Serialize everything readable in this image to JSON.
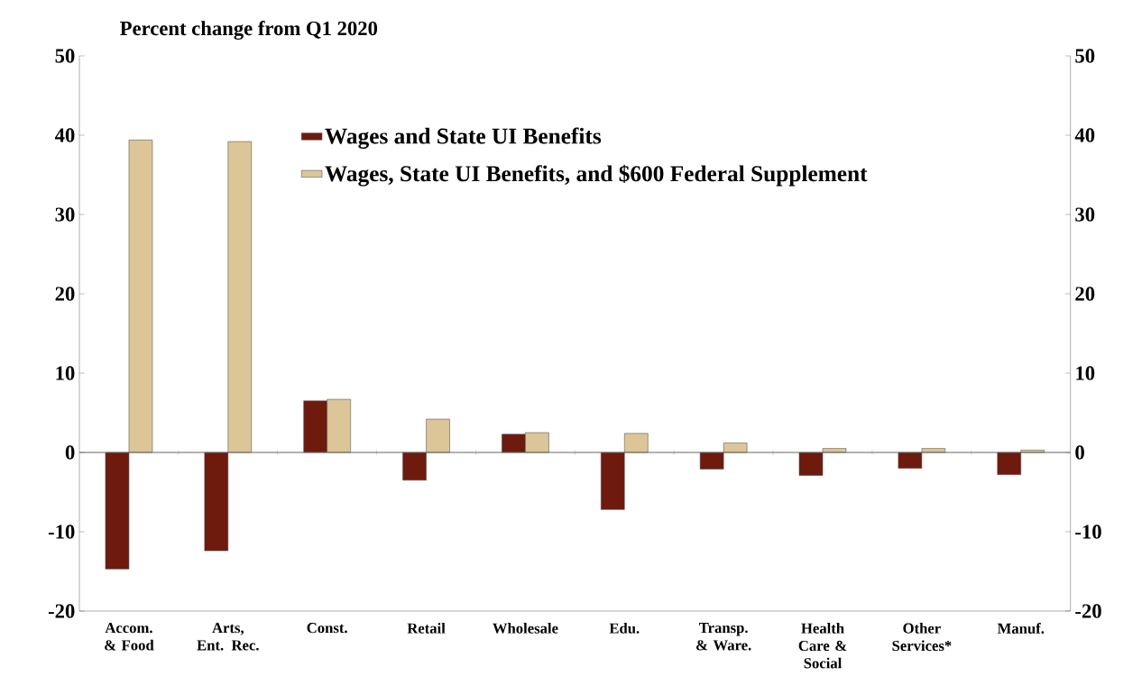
{
  "chart_data": {
    "type": "bar",
    "title": "Percent change from Q1 2020",
    "categories": [
      "Accom. & Food",
      "Arts, Ent. Rec.",
      "Const.",
      "Retail",
      "Wholesale",
      "Edu.",
      "Transp. & Ware.",
      "Health Care & Social",
      "Other Services*",
      "Manuf."
    ],
    "series": [
      {
        "name": "Wages and State UI Benefits",
        "color": "#6e1a0c",
        "values": [
          -14.7,
          -12.4,
          6.5,
          -3.5,
          2.3,
          -7.2,
          -2.1,
          -2.9,
          -2.0,
          -2.8
        ]
      },
      {
        "name": "Wages, State UI Benefits, and $600 Federal Supplement",
        "color": "#dcc597",
        "values": [
          39.4,
          39.2,
          6.7,
          4.2,
          2.5,
          2.4,
          1.2,
          0.5,
          0.5,
          0.3
        ]
      }
    ],
    "ylim": [
      -20,
      50
    ],
    "yticks": [
      -20,
      -10,
      0,
      10,
      20,
      30,
      40,
      50
    ],
    "y2lim": [
      -20,
      50
    ],
    "y2ticks": [
      -20,
      -10,
      0,
      10,
      20,
      30,
      40,
      50
    ],
    "legend": "top"
  }
}
